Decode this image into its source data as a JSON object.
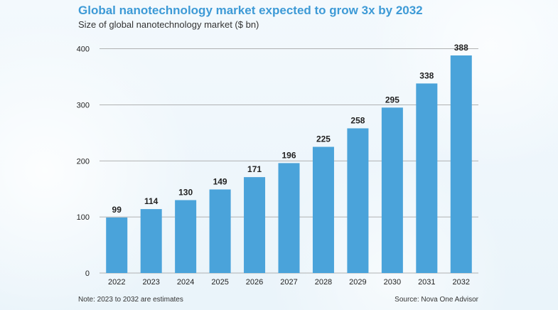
{
  "header": {
    "title": "Global nanotechnology market expected to grow 3x by 2032",
    "subtitle": "Size of global nanotechnology market ($ bn)"
  },
  "footer": {
    "note": "Note: 2023 to 2032 are estimates",
    "source": "Source: Nova One Advisor"
  },
  "colors": {
    "bar": "#4aa3da",
    "title": "#3d9ad6",
    "grid": "#9a9a9a",
    "text": "#222222"
  },
  "chart_data": {
    "type": "bar",
    "categories": [
      "2022",
      "2023",
      "2024",
      "2025",
      "2026",
      "2027",
      "2028",
      "2029",
      "2030",
      "2031",
      "2032"
    ],
    "values": [
      99,
      114,
      130,
      149,
      171,
      196,
      225,
      258,
      295,
      338,
      388
    ],
    "title": "Global nanotechnology market expected to grow 3x by 2032",
    "subtitle": "Size of global nanotechnology market ($ bn)",
    "ylim": [
      0,
      400
    ],
    "yticks": [
      0,
      100,
      200,
      300,
      400
    ],
    "grid": true,
    "data_labels": true
  }
}
